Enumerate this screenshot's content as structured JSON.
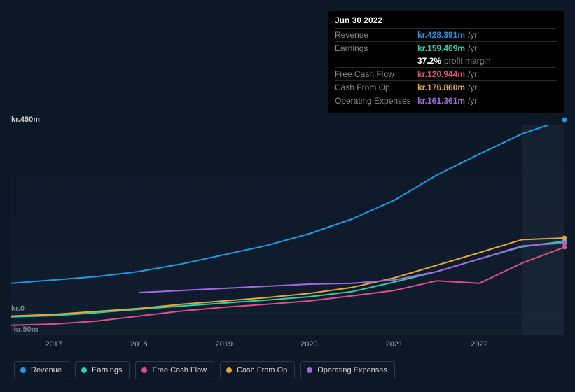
{
  "tooltip": {
    "date": "Jun 30 2022",
    "rows": [
      {
        "label": "Revenue",
        "value": "kr.428.391m",
        "unit": "/yr",
        "color": "#2099e6",
        "border": true
      },
      {
        "label": "Earnings",
        "value": "kr.159.469m",
        "unit": "/yr",
        "color": "#2dcfa7",
        "border": true
      },
      {
        "label": "",
        "value": "37.2%",
        "unit": "profit margin",
        "color": "#ffffff",
        "border": false
      },
      {
        "label": "Free Cash Flow",
        "value": "kr.120.944m",
        "unit": "/yr",
        "color": "#e04f86",
        "border": true
      },
      {
        "label": "Cash From Op",
        "value": "kr.176.860m",
        "unit": "/yr",
        "color": "#e8a63a",
        "border": true
      },
      {
        "label": "Operating Expenses",
        "value": "kr.161.361m",
        "unit": "/yr",
        "color": "#a069e0",
        "border": true
      }
    ]
  },
  "chart": {
    "type": "line",
    "x": [
      2016.5,
      2017,
      2017.5,
      2018,
      2018.5,
      2019,
      2019.5,
      2020,
      2020.5,
      2021,
      2021.5,
      2022,
      2022.5,
      2023
    ],
    "x_domain": [
      2016.5,
      2023
    ],
    "y_domain": [
      -50,
      450
    ],
    "y_ticks": [
      {
        "v": 450,
        "label": "kr.450m"
      },
      {
        "v": 0,
        "label": "kr.0"
      },
      {
        "v": -50,
        "label": "-kr.50m"
      }
    ],
    "x_ticks": [
      2017,
      2018,
      2019,
      2020,
      2021,
      2022
    ],
    "forecast_start": 2022.5,
    "background_color": "#0d1826",
    "grid_color": "#1e2a3a",
    "line_width": 2,
    "series": [
      {
        "name": "Revenue",
        "color": "#2099e6",
        "y": [
          72,
          80,
          88,
          100,
          118,
          140,
          162,
          190,
          225,
          270,
          330,
          380,
          428,
          462
        ]
      },
      {
        "name": "Earnings",
        "color": "#2dcfa7",
        "y": [
          -8,
          -5,
          2,
          10,
          18,
          25,
          32,
          40,
          52,
          75,
          100,
          130,
          159,
          172
        ]
      },
      {
        "name": "Free Cash Flow",
        "color": "#e04f86",
        "y": [
          -28,
          -25,
          -18,
          -6,
          6,
          15,
          22,
          30,
          42,
          55,
          78,
          72,
          120,
          158
        ]
      },
      {
        "name": "Cash From Op",
        "color": "#e8a63a",
        "y": [
          -6,
          -2,
          5,
          12,
          22,
          30,
          38,
          48,
          62,
          85,
          115,
          145,
          176,
          180
        ]
      },
      {
        "name": "Operating Expenses",
        "color": "#a069e0",
        "y": [
          null,
          null,
          null,
          50,
          55,
          60,
          65,
          70,
          72,
          80,
          100,
          130,
          161,
          168
        ]
      }
    ]
  },
  "legend": [
    {
      "label": "Revenue",
      "color": "#2099e6"
    },
    {
      "label": "Earnings",
      "color": "#2dcfa7"
    },
    {
      "label": "Free Cash Flow",
      "color": "#e04f86"
    },
    {
      "label": "Cash From Op",
      "color": "#e8a63a"
    },
    {
      "label": "Operating Expenses",
      "color": "#a069e0"
    }
  ]
}
